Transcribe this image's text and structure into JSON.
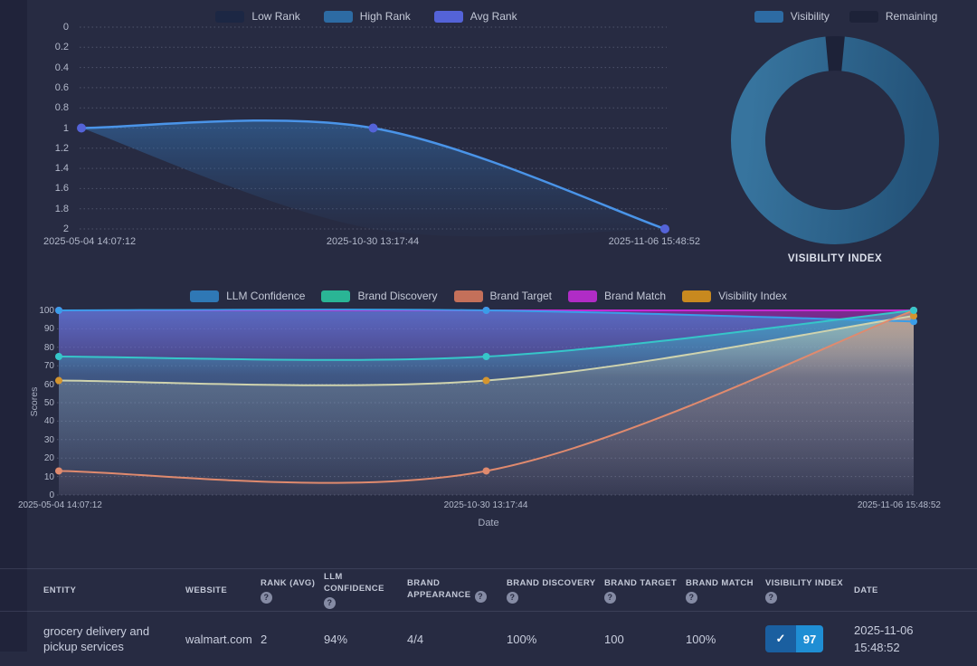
{
  "chart_data": [
    {
      "type": "line",
      "title": "Rank over time",
      "x": [
        "2025-05-04 14:07:12",
        "2025-10-30 13:17:44",
        "2025-11-06 15:48:52"
      ],
      "series": [
        {
          "name": "Low Rank",
          "values": [
            1,
            2,
            2
          ],
          "color": "#1c2744"
        },
        {
          "name": "High Rank",
          "values": [
            1,
            1,
            2
          ],
          "color": "#2d6ba3"
        },
        {
          "name": "Avg Rank",
          "values": [
            1,
            1,
            2
          ],
          "color": "#5463d8",
          "line_color": "#4a94e8"
        }
      ],
      "ylim": [
        0,
        2
      ],
      "y_inverted": true,
      "y_ticks": [
        "0",
        "0.2",
        "0.4",
        "0.6",
        "0.8",
        "1",
        "1.2",
        "1.4",
        "1.6",
        "1.8",
        "2"
      ],
      "grid": true,
      "legend_position": "top"
    },
    {
      "type": "pie",
      "donut": true,
      "title": "VISIBILITY INDEX",
      "slices": [
        {
          "label": "Visibility",
          "value": 97,
          "color": "#2d6ba3"
        },
        {
          "label": "Remaining",
          "value": 3,
          "color": "#1d2238"
        }
      ],
      "legend_position": "top"
    },
    {
      "type": "area",
      "x": [
        "2025-05-04 14:07:12",
        "2025-10-30 13:17:44",
        "2025-11-06 15:48:52"
      ],
      "xlabel": "Date",
      "ylabel": "Scores",
      "ylim": [
        0,
        100
      ],
      "y_ticks": [
        "0",
        "10",
        "20",
        "30",
        "40",
        "50",
        "60",
        "70",
        "80",
        "90",
        "100"
      ],
      "grid": true,
      "legend_position": "top",
      "series": [
        {
          "name": "LLM Confidence",
          "values": [
            100,
            100,
            94
          ],
          "color": "#2f78b5",
          "line_color": "#3a9de8"
        },
        {
          "name": "Brand Discovery",
          "values": [
            75,
            75,
            100
          ],
          "color": "#2ab595",
          "line_color": "#36c6c9"
        },
        {
          "name": "Brand Target",
          "values": [
            13,
            13,
            100
          ],
          "color": "#c4705a",
          "line_color": "#e08a6e"
        },
        {
          "name": "Brand Match",
          "values": [
            100,
            100,
            100
          ],
          "color": "#b02cc6",
          "line_color": "#c32ad2"
        },
        {
          "name": "Visibility Index",
          "values": [
            62,
            62,
            97
          ],
          "color": "#c8891f",
          "line_color": "#cfd3ae",
          "dot_color": "#d4952f"
        }
      ]
    }
  ],
  "table": {
    "headers": [
      {
        "label": "ENTITY",
        "help": false
      },
      {
        "label": "WEBSITE",
        "help": false
      },
      {
        "label": "RANK (AVG)",
        "help": true
      },
      {
        "label": "LLM CONFIDENCE",
        "help": true
      },
      {
        "label": "BRAND APPEARANCE",
        "help": true,
        "inline_help": true
      },
      {
        "label": "BRAND DISCOVERY",
        "help": true
      },
      {
        "label": "BRAND TARGET",
        "help": true
      },
      {
        "label": "BRAND MATCH",
        "help": true
      },
      {
        "label": "VISIBILITY INDEX",
        "help": true
      },
      {
        "label": "DATE",
        "help": false
      }
    ],
    "rows": [
      {
        "entity": "grocery delivery and pickup services",
        "website": "walmart.com",
        "rank_avg": "2",
        "llm_confidence": "94%",
        "brand_appearance": "4/4",
        "brand_discovery": "100%",
        "brand_target": "100",
        "brand_match": "100%",
        "visibility_index": "97",
        "date_line1": "2025-11-06",
        "date_line2": "15:48:52"
      }
    ]
  },
  "colors": {
    "background": "#272b42",
    "left_strip": "#20233a",
    "grid": "#767c94",
    "badge_check_bg": "#1a5fa0",
    "badge_value_bg": "#1f8ed4",
    "donut_gradient_top": "#37749e",
    "donut_gradient_bottom": "#245379"
  }
}
